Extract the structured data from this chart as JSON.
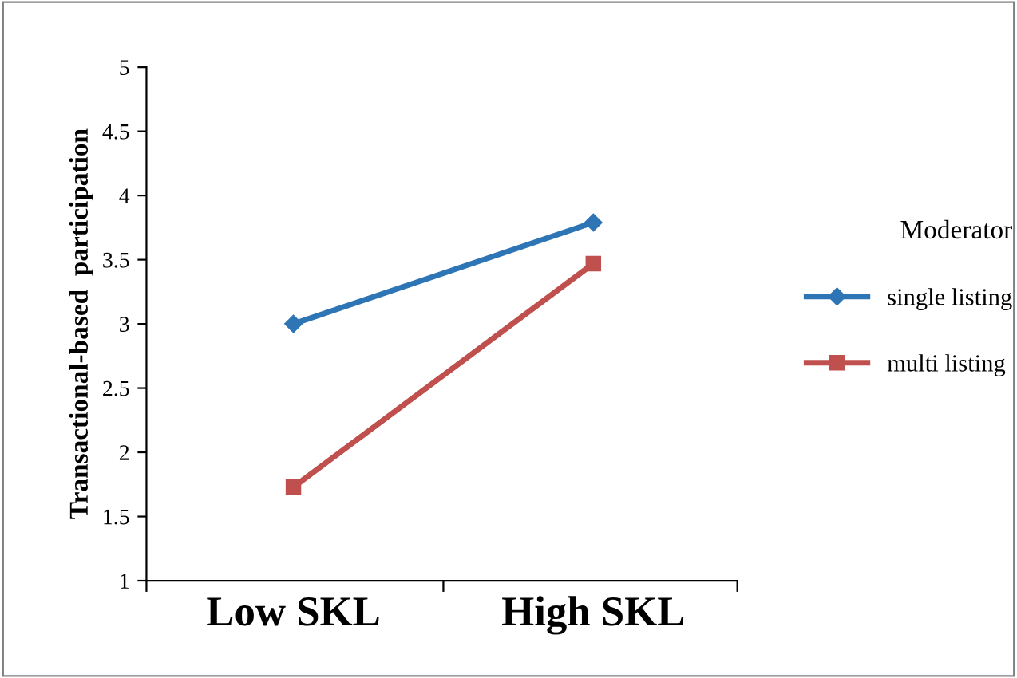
{
  "chart_data": {
    "type": "line",
    "ylabel": "Transactional-based  participation",
    "legend_title": "Moderator",
    "categories": [
      "Low SKL",
      "High SKL"
    ],
    "series": [
      {
        "name": "single listing",
        "color": "#2e75b6",
        "values": [
          3.0,
          3.79
        ],
        "marker": "diamond"
      },
      {
        "name": "multi listing",
        "color": "#c0504d",
        "values": [
          1.73,
          3.47
        ],
        "marker": "square"
      }
    ],
    "ylim": [
      1,
      5
    ],
    "yticks": [
      1,
      1.5,
      2,
      2.5,
      3,
      3.5,
      4,
      4.5,
      5
    ],
    "grid": false,
    "legend": "right",
    "line_style": "solid"
  }
}
